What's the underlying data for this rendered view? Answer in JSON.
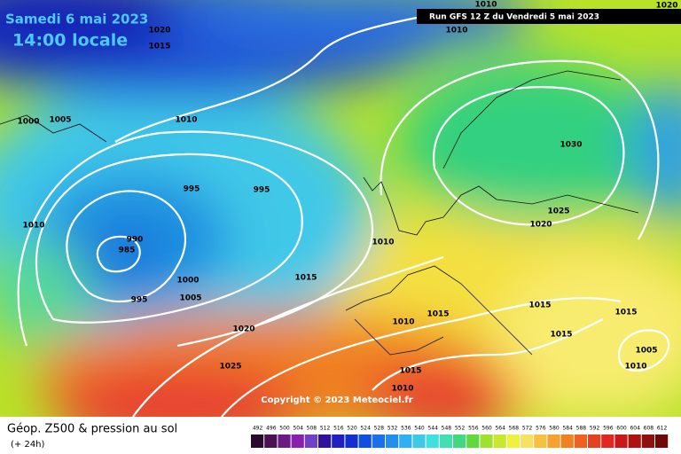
{
  "header": {
    "date": "Samedi 6 mai 2023",
    "time": "14:00 locale",
    "run": "Run GFS 12 Z du Vendredi 5 mai 2023"
  },
  "isobar_labels": [
    1010,
    1020,
    1015,
    1010,
    1020,
    1000,
    1005,
    1010,
    995,
    995,
    1030,
    1010,
    990,
    985,
    1025,
    1020,
    1010,
    1015,
    1000,
    1005,
    995,
    1010,
    1015,
    1015,
    1015,
    1020,
    1015,
    1005,
    1010,
    1025,
    1015,
    1010
  ],
  "copyright": "Copyright © 2023 Meteociel.fr",
  "legend": {
    "title": "Géop. Z500 & pression au sol",
    "subtitle": "(+ 24h)",
    "scale": [
      492,
      496,
      500,
      504,
      508,
      512,
      516,
      520,
      524,
      528,
      532,
      536,
      540,
      544,
      548,
      552,
      556,
      560,
      564,
      568,
      572,
      576,
      580,
      584,
      588,
      592,
      596,
      600,
      604,
      608,
      612
    ]
  }
}
